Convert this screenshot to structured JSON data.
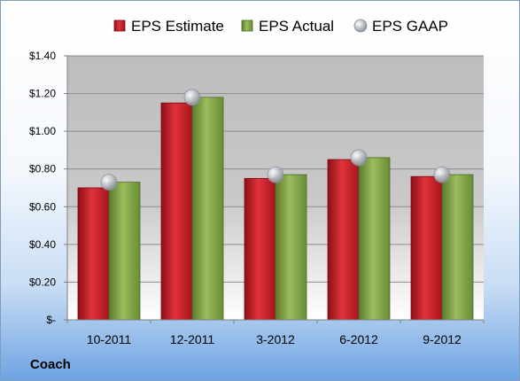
{
  "company_label": "Coach",
  "chart_data": {
    "type": "bar",
    "categories": [
      "10-2011",
      "12-2011",
      "3-2012",
      "6-2012",
      "9-2012"
    ],
    "series": [
      {
        "name": "EPS Estimate",
        "kind": "bar",
        "color": "#c8202a",
        "values": [
          0.7,
          1.15,
          0.75,
          0.85,
          0.76
        ]
      },
      {
        "name": "EPS Actual",
        "kind": "bar",
        "color": "#7da046",
        "values": [
          0.73,
          1.18,
          0.77,
          0.86,
          0.77
        ]
      },
      {
        "name": "EPS GAAP",
        "kind": "marker",
        "color": "#b9bec8",
        "values": [
          0.73,
          1.18,
          0.77,
          0.86,
          0.77
        ]
      }
    ],
    "yticks": [
      {
        "value": 1.4,
        "label": "$1.40"
      },
      {
        "value": 1.2,
        "label": "$1.20"
      },
      {
        "value": 1.0,
        "label": "$1.00"
      },
      {
        "value": 0.8,
        "label": "$0.80"
      },
      {
        "value": 0.6,
        "label": "$0.60"
      },
      {
        "value": 0.4,
        "label": "$0.40"
      },
      {
        "value": 0.2,
        "label": "$0.20"
      },
      {
        "value": 0.0,
        "label": "$-"
      }
    ],
    "ylim": [
      0,
      1.4
    ],
    "grid": true,
    "legend_position": "top"
  }
}
